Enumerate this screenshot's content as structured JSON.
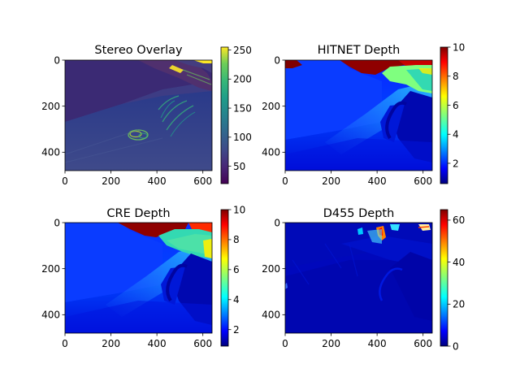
{
  "figure": {
    "panels": [
      {
        "title": "Stereo Overlay"
      },
      {
        "title": "HITNET Depth"
      },
      {
        "title": "CRE Depth"
      },
      {
        "title": "D455 Depth"
      }
    ]
  },
  "chart_data": [
    {
      "type": "heatmap",
      "title": "Stereo Overlay",
      "image_width": 640,
      "image_height": 480,
      "xlim": [
        0,
        640
      ],
      "ylim": [
        480,
        0
      ],
      "xticks": [
        0,
        200,
        400,
        600
      ],
      "xtick_labels": [
        "0",
        "200",
        "400",
        "600"
      ],
      "yticks": [
        0,
        200,
        400
      ],
      "ytick_labels": [
        "0",
        "200",
        "400"
      ],
      "colormap": "viridis",
      "colorbar": {
        "min": 20,
        "max": 255,
        "ticks": [
          50,
          100,
          150,
          200,
          250
        ],
        "tick_labels": [
          "50",
          "100",
          "150",
          "200",
          "250"
        ]
      }
    },
    {
      "type": "heatmap",
      "title": "HITNET Depth",
      "image_width": 640,
      "image_height": 480,
      "xlim": [
        0,
        640
      ],
      "ylim": [
        480,
        0
      ],
      "xticks": [
        0,
        200,
        400,
        600
      ],
      "xtick_labels": [
        "0",
        "200",
        "400",
        "600"
      ],
      "yticks": [
        0,
        200,
        400
      ],
      "ytick_labels": [
        "0",
        "200",
        "400"
      ],
      "colormap": "jet",
      "colorbar": {
        "min": 0.6,
        "max": 10,
        "ticks": [
          2,
          4,
          6,
          8,
          10
        ],
        "tick_labels": [
          "2",
          "4",
          "6",
          "8",
          "10"
        ]
      }
    },
    {
      "type": "heatmap",
      "title": "CRE Depth",
      "image_width": 640,
      "image_height": 480,
      "xlim": [
        0,
        640
      ],
      "ylim": [
        480,
        0
      ],
      "xticks": [
        0,
        200,
        400,
        600
      ],
      "xtick_labels": [
        "0",
        "200",
        "400",
        "600"
      ],
      "yticks": [
        0,
        200,
        400
      ],
      "ytick_labels": [
        "0",
        "200",
        "400"
      ],
      "colormap": "jet",
      "colorbar": {
        "min": 0.9,
        "max": 10,
        "ticks": [
          2,
          4,
          6,
          8,
          10
        ],
        "tick_labels": [
          "2",
          "4",
          "6",
          "8",
          "10"
        ]
      }
    },
    {
      "type": "heatmap",
      "title": "D455 Depth",
      "image_width": 640,
      "image_height": 480,
      "xlim": [
        0,
        640
      ],
      "ylim": [
        480,
        0
      ],
      "xticks": [
        0,
        200,
        400,
        600
      ],
      "xtick_labels": [
        "0",
        "200",
        "400",
        "600"
      ],
      "yticks": [
        0,
        200,
        400
      ],
      "ytick_labels": [
        "0",
        "200",
        "400"
      ],
      "colormap": "jet",
      "colorbar": {
        "min": 0,
        "max": 65,
        "ticks": [
          0,
          20,
          40,
          60
        ],
        "tick_labels": [
          "0",
          "20",
          "40",
          "60"
        ]
      }
    }
  ]
}
